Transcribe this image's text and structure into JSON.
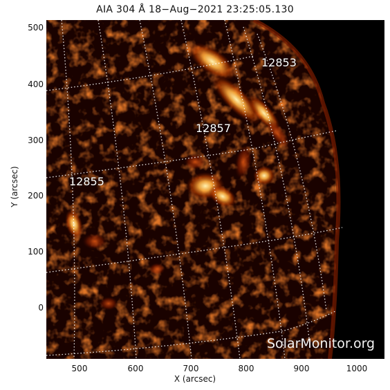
{
  "title": "AIA 304 Å 18−Aug−2021  23:25:05.130",
  "xlabel": "X (arcsec)",
  "ylabel": "Y (arcsec)",
  "xticks": [
    "500",
    "600",
    "700",
    "800",
    "900",
    "1000"
  ],
  "yticks": [
    "500",
    "400",
    "300",
    "200",
    "100",
    "0"
  ],
  "regions": [
    {
      "name": "12853",
      "label": "12853"
    },
    {
      "name": "12857",
      "label": "12857"
    },
    {
      "name": "12855",
      "label": "12855"
    }
  ],
  "watermark": "SolarMonitor.org",
  "colors": {
    "background": "#000000",
    "plasma_dark": "#3a0600",
    "plasma_mid": "#b53a00",
    "plasma_bright": "#ffd77a",
    "grid": "#ffffff"
  }
}
